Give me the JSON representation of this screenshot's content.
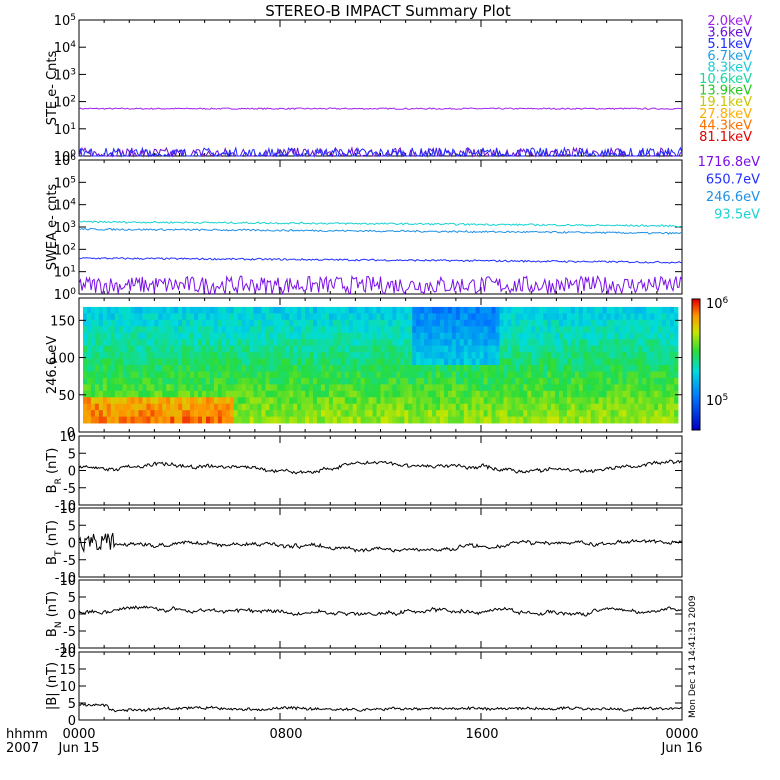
{
  "title": "STEREO-B IMPACT Summary Plot",
  "footer": {
    "left_top": "hhmm",
    "left_bottom": "2007",
    "ticks": [
      "0000",
      "0800",
      "1600",
      "0000"
    ],
    "dates": [
      "Jun 15",
      "Jun 16"
    ]
  },
  "timestamp_vertical": "Mon Dec 14 14:41:31 2009",
  "chart_data": [
    {
      "type": "line",
      "ylabel": "STE e- Cnts",
      "yscale": "log",
      "ylim": [
        1,
        100000
      ],
      "yticks": [
        "10^0",
        "10^1",
        "10^2",
        "10^3",
        "10^4",
        "10^5"
      ],
      "series": [
        {
          "name": "2.0keV",
          "color": "#a020f0",
          "level": 55
        },
        {
          "name": "3.6keV",
          "color": "#6a0fd8",
          "level": 1.2
        },
        {
          "name": "5.1keV",
          "color": "#1f2cff",
          "level": 1.2
        },
        {
          "name": "6.7keV",
          "color": "#1fa0e6"
        },
        {
          "name": "8.3keV",
          "color": "#19cdd6"
        },
        {
          "name": "10.6keV",
          "color": "#17d69c"
        },
        {
          "name": "13.9keV",
          "color": "#26c81e"
        },
        {
          "name": "19.1keV",
          "color": "#c8c800"
        },
        {
          "name": "27.8keV",
          "color": "#ffae00"
        },
        {
          "name": "44.3keV",
          "color": "#ff7000"
        },
        {
          "name": "81.1keV",
          "color": "#e00000"
        }
      ]
    },
    {
      "type": "line",
      "ylabel": "SWEA e- cnts",
      "yscale": "log",
      "ylim": [
        1,
        1000000
      ],
      "yticks": [
        "10^0",
        "10^1",
        "10^2",
        "10^3",
        "10^4",
        "10^5",
        "10^6"
      ],
      "series": [
        {
          "name": "1716.8eV",
          "color": "#7a10e8",
          "level": 2.5
        },
        {
          "name": "650.7eV",
          "color": "#2030ff",
          "level": 40
        },
        {
          "name": "246.6eV",
          "color": "#1e90e8",
          "level": 800
        },
        {
          "name": "93.5eV",
          "color": "#1ad2d2",
          "level": 1700
        }
      ]
    },
    {
      "type": "heatmap",
      "ylabel": "246.6 eV",
      "ylim": [
        0,
        180
      ],
      "yticks": [
        "0",
        "50",
        "100",
        "150"
      ],
      "colorbar": {
        "top_label": "10^6",
        "bottom_label": "10^5"
      }
    },
    {
      "type": "line",
      "ylabel": "B_R (nT)",
      "ylim": [
        -10,
        10
      ],
      "yticks": [
        "-10",
        "-5",
        "0",
        "5",
        "10"
      ],
      "series": [
        {
          "color": "#000000",
          "level": 1
        }
      ]
    },
    {
      "type": "line",
      "ylabel": "B_T (nT)",
      "ylim": [
        -10,
        10
      ],
      "yticks": [
        "-10",
        "-5",
        "0",
        "5",
        "10"
      ],
      "series": [
        {
          "color": "#000000",
          "level": -1
        }
      ]
    },
    {
      "type": "line",
      "ylabel": "B_N (nT)",
      "ylim": [
        -10,
        10
      ],
      "yticks": [
        "-10",
        "-5",
        "0",
        "5",
        "10"
      ],
      "series": [
        {
          "color": "#000000",
          "level": 1
        }
      ]
    },
    {
      "type": "line",
      "ylabel": "|B| (nT)",
      "ylim": [
        0,
        20
      ],
      "yticks": [
        "0",
        "5",
        "10",
        "15",
        "20"
      ],
      "series": [
        {
          "color": "#000000",
          "level": 3
        }
      ]
    }
  ]
}
